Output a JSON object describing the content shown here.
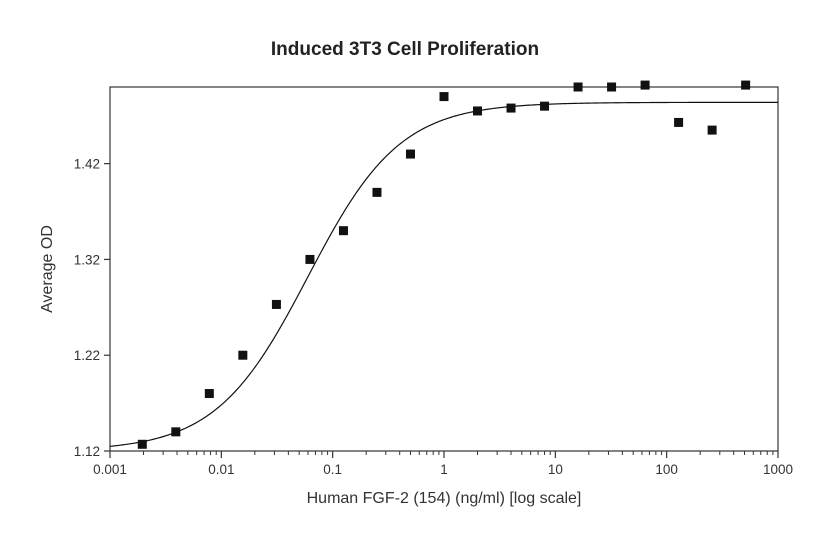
{
  "chart_data": {
    "type": "scatter",
    "title": "Induced 3T3 Cell Proliferation",
    "xlabel": "Human FGF-2 (154) (ng/ml) [log scale]",
    "ylabel": "Average OD",
    "x_scale": "log",
    "xlim": [
      0.001,
      1000
    ],
    "ylim": [
      1.12,
      1.5
    ],
    "x_ticks": [
      0.001,
      0.01,
      0.1,
      1,
      10,
      100,
      1000
    ],
    "x_tick_labels": [
      "0.001",
      "0.01",
      "0.1",
      "1",
      "10",
      "100",
      "1000"
    ],
    "y_ticks": [
      1.12,
      1.22,
      1.32,
      1.42
    ],
    "y_tick_labels": [
      "1.12",
      "1.22",
      "1.32",
      "1.42"
    ],
    "grid": false,
    "legend": "none",
    "series": [
      {
        "kind": "points",
        "marker": "square",
        "color": "#111111",
        "x": [
          0.00195,
          0.0039,
          0.0078,
          0.0156,
          0.03125,
          0.0625,
          0.125,
          0.25,
          0.5,
          1,
          2,
          4,
          8,
          16,
          32,
          64,
          128,
          256,
          512
        ],
        "y": [
          1.127,
          1.14,
          1.18,
          1.22,
          1.273,
          1.32,
          1.35,
          1.39,
          1.43,
          1.49,
          1.475,
          1.478,
          1.48,
          1.5,
          1.5,
          1.502,
          1.463,
          1.455,
          1.502
        ]
      },
      {
        "kind": "fit-curve",
        "color": "#111111",
        "bottom": 1.12,
        "top": 1.484,
        "ec50": 0.06,
        "hill": 1.05
      }
    ]
  }
}
